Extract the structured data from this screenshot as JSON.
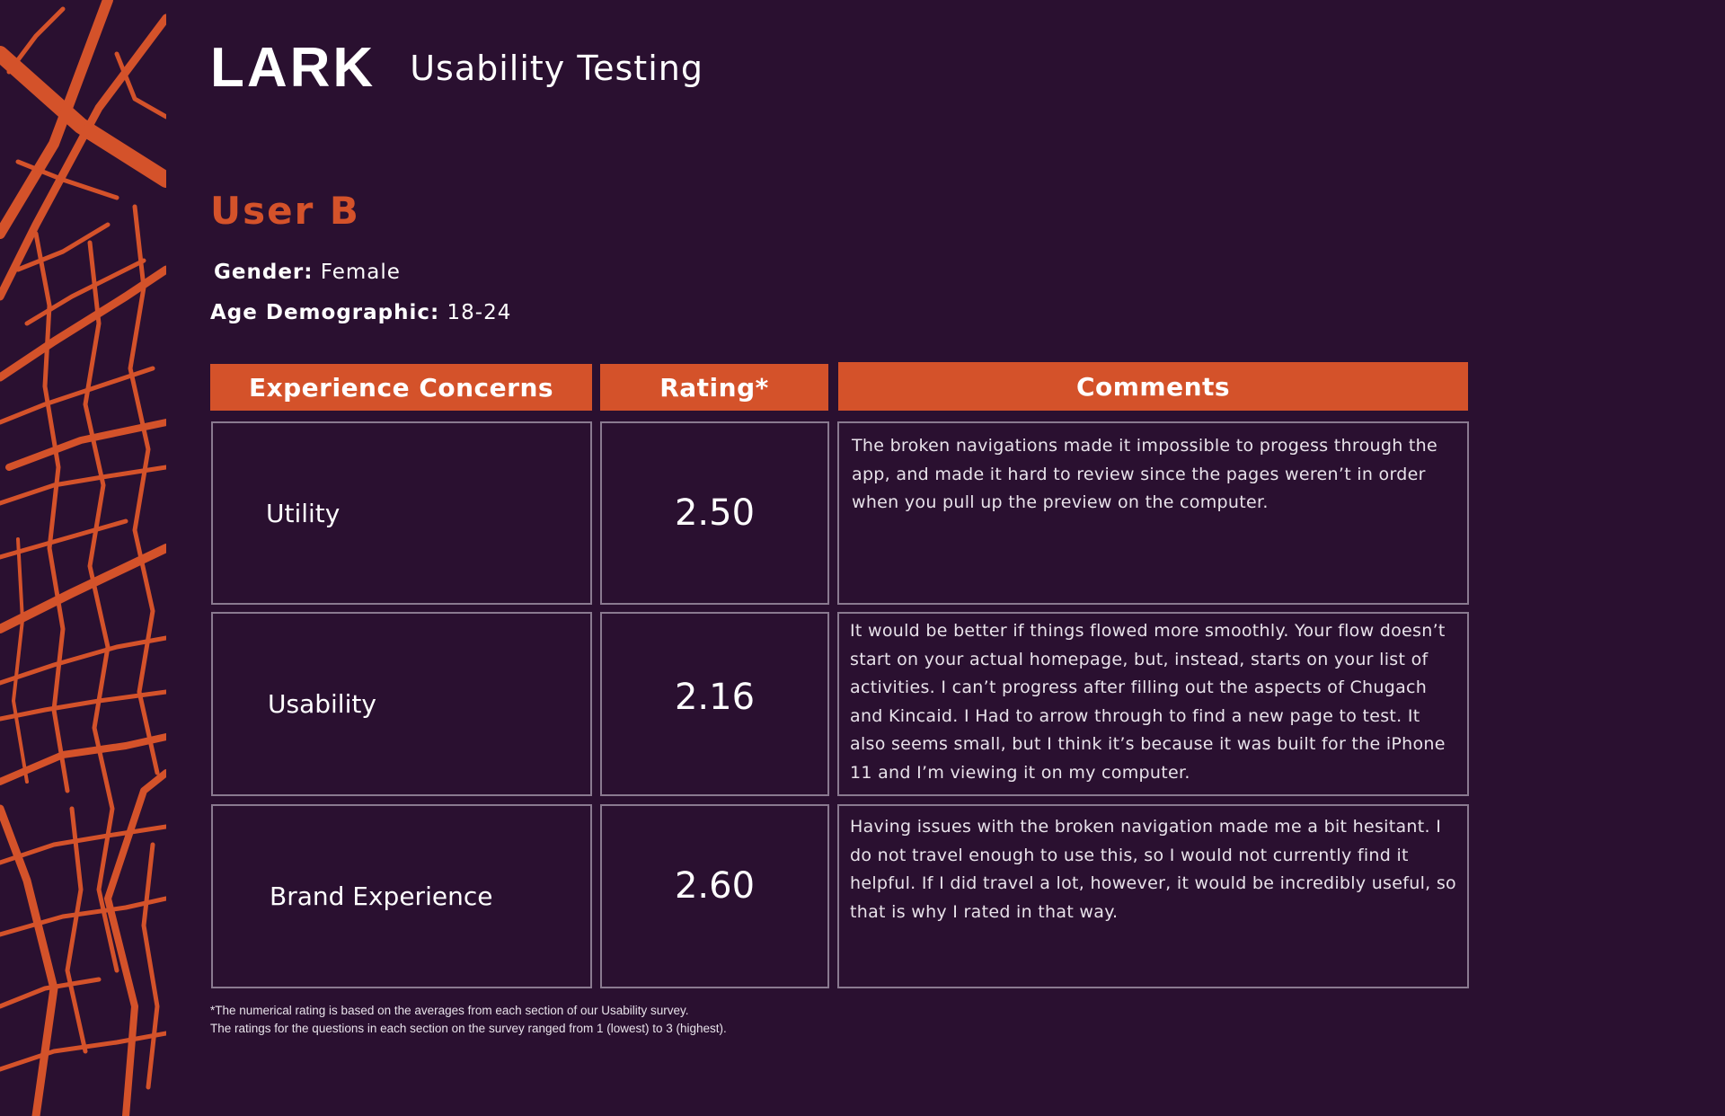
{
  "brand": {
    "logo": "LARK",
    "subtitle": "Usability Testing"
  },
  "user": {
    "title": "User B",
    "gender_label": "Gender:",
    "gender_value": "Female",
    "age_label": "Age Demographic:",
    "age_value": "18-24"
  },
  "table": {
    "headers": {
      "concerns": "Experience Concerns",
      "rating": "Rating*",
      "comments": "Comments"
    },
    "rows": [
      {
        "concern": "Utility",
        "rating": "2.50",
        "comment": "The broken navigations made it impossible to progess through the app, and made it hard to review since the pages weren’t in order when you pull up the preview on the computer."
      },
      {
        "concern": "Usability",
        "rating": "2.16",
        "comment": "It would be better if things flowed more smoothly. Your flow doesn’t start on your actual homepage, but, instead, starts on your list of activities. I can’t progress after filling out the aspects of Chugach and Kincaid. I Had to arrow through to find a new page to test. It also seems small, but I think it’s because it was built for the iPhone 11 and I’m viewing it on my computer."
      },
      {
        "concern": "Brand Experience",
        "rating": "2.60",
        "comment": "Having issues with the broken navigation made me a bit hesitant. I do not travel enough to use this, so I would not currently find it helpful. If I did travel a lot, however, it would be incredibly useful, so that is why I rated in that way."
      }
    ]
  },
  "footnote": {
    "line1": "*The numerical rating is based on the averages from each section of our Usability survey.",
    "line2": "The ratings for the questions in each section on the survey ranged from 1 (lowest) to 3 (highest)."
  },
  "colors": {
    "background": "#2a1030",
    "accent": "#d4522a",
    "cell_border": "#8a7a90"
  }
}
